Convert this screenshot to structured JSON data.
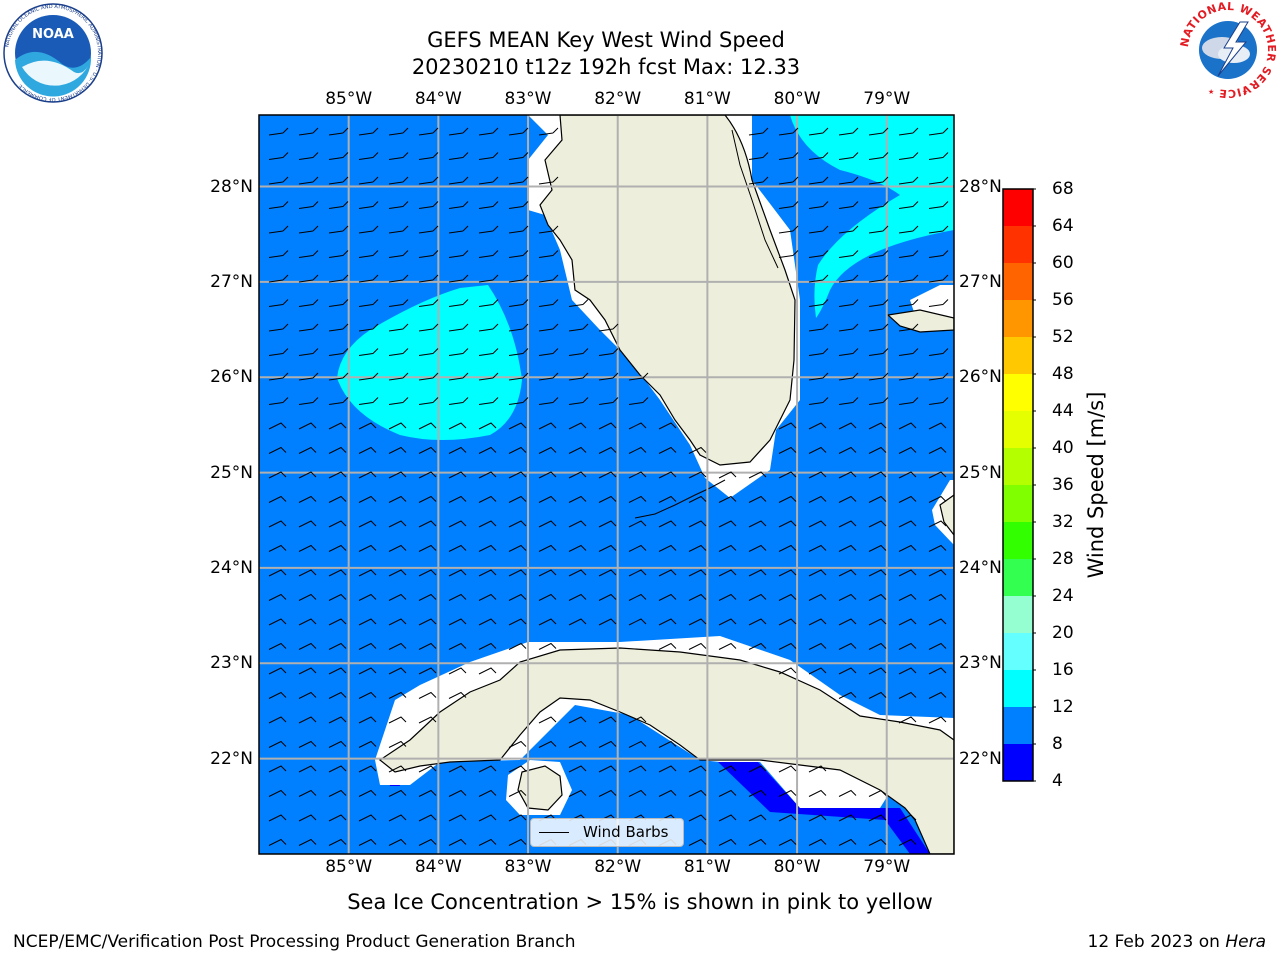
{
  "header": {
    "title_line1": "GEFS MEAN Key West Wind Speed",
    "title_line2": "20230210 t12z 192h fcst   Max: 12.33"
  },
  "logos": {
    "left_name": "NOAA",
    "left_ring_text": "NATIONAL OCEANIC AND ATMOSPHERIC ADMINISTRATION · U.S. DEPARTMENT OF COMMERCE",
    "right_ring_text": "NATIONAL WEATHER SERVICE"
  },
  "map": {
    "lon_ticks": [
      "85°W",
      "84°W",
      "83°W",
      "82°W",
      "81°W",
      "80°W",
      "79°W"
    ],
    "lon_values": [
      -85,
      -84,
      -83,
      -82,
      -81,
      -80,
      -79
    ],
    "lat_ticks": [
      "28°N",
      "27°N",
      "26°N",
      "25°N",
      "24°N",
      "23°N",
      "22°N"
    ],
    "lat_values": [
      28,
      27,
      26,
      25,
      24,
      23,
      22
    ],
    "extent": {
      "lon_min": -86,
      "lon_max": -78.25,
      "lat_min": 21.0,
      "lat_max": 28.75
    },
    "colors": {
      "land": "#eeeedc",
      "wind_8_12": "#0080ff",
      "wind_12_16": "#00ffff",
      "wind_4_8": "#0000ff",
      "grid": "#b0b0b0"
    },
    "legend_label": "Wind Barbs"
  },
  "colorbar": {
    "label": "Wind Speed [m/s]",
    "ticks": [
      "68",
      "64",
      "60",
      "56",
      "52",
      "48",
      "44",
      "40",
      "36",
      "32",
      "28",
      "24",
      "20",
      "16",
      "12",
      "8",
      "4"
    ],
    "colors": [
      "#ff0000",
      "#ff3200",
      "#ff6400",
      "#ff9600",
      "#ffc800",
      "#ffff00",
      "#e6ff00",
      "#b4ff00",
      "#80ff00",
      "#32ff00",
      "#32ff50",
      "#96ffd2",
      "#64ffff",
      "#00ffff",
      "#0080ff",
      "#0000ff"
    ]
  },
  "note": "Sea Ice Concentration > 15% is shown in pink to yellow",
  "footer": {
    "left": "NCEP/EMC/Verification Post Processing Product Generation Branch",
    "right_prefix": "12 Feb 2023 on ",
    "right_host": "Hera"
  }
}
